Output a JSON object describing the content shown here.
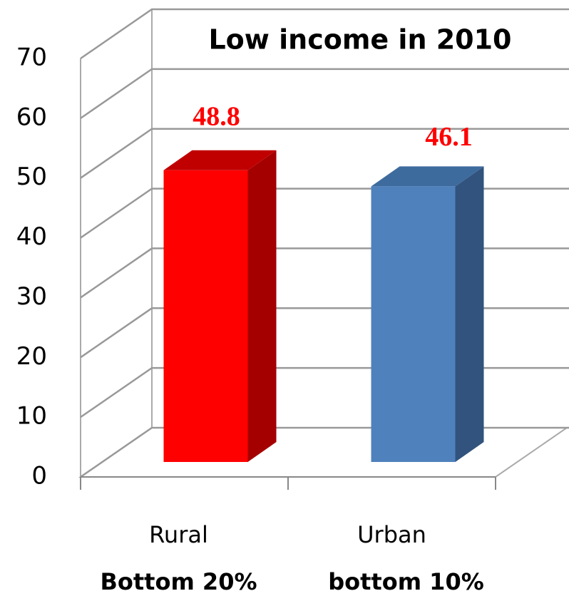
{
  "chart_data": {
    "type": "bar3d",
    "title": "Low income in 2010",
    "categories": [
      "Rural",
      "Urban"
    ],
    "category_sublabels": [
      "Bottom 20%",
      "bottom 10%"
    ],
    "values": [
      48.8,
      46.1
    ],
    "colors": [
      "#ff0000",
      "#4f81bd"
    ],
    "side_colors": [
      "#a50000",
      "#31537d"
    ],
    "top_colors": [
      "#c00000",
      "#3e6b9e"
    ],
    "value_label_color": "#ff0000",
    "ylim": [
      0,
      70
    ],
    "yticks": [
      0,
      10,
      20,
      30,
      40,
      50,
      60,
      70
    ],
    "grid": true
  }
}
